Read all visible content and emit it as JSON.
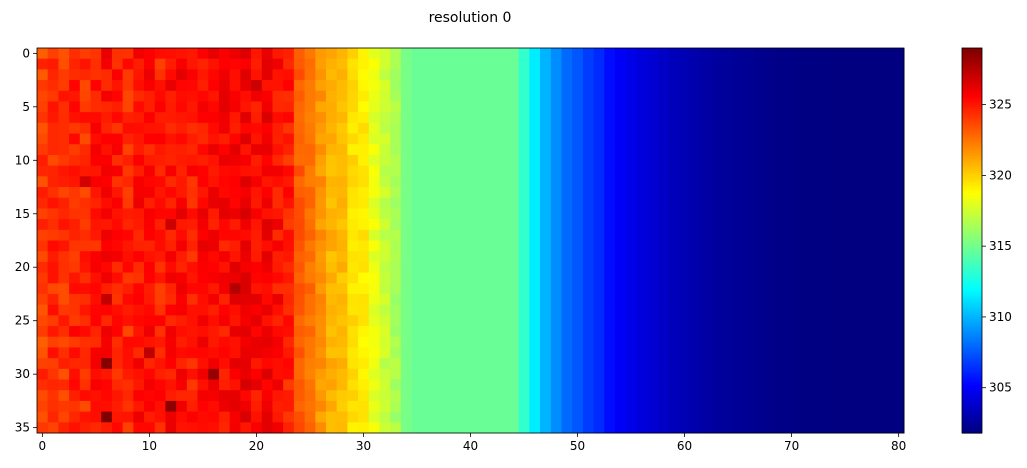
{
  "chart_data": {
    "type": "heatmap",
    "title": "resolution 0",
    "colormap": "jet",
    "rows": 36,
    "cols": 81,
    "x_ticks": [
      "0",
      "10",
      "20",
      "30",
      "40",
      "50",
      "60",
      "70",
      "80"
    ],
    "y_ticks": [
      "0",
      "5",
      "10",
      "15",
      "20",
      "25",
      "30",
      "35"
    ],
    "colorbar": {
      "vmin": 301.8,
      "vmax": 329.0,
      "ticks": [
        "305",
        "310",
        "315",
        "320",
        "325"
      ]
    },
    "column_profile": [
      324.0,
      324.5,
      324.3,
      324.8,
      324.5,
      325.0,
      325.3,
      325.0,
      324.6,
      325.2,
      325.2,
      324.8,
      325.3,
      325.5,
      325.0,
      325.4,
      325.4,
      325.4,
      325.6,
      325.8,
      325.5,
      325.8,
      325.3,
      324.8,
      323.2,
      322.6,
      321.6,
      320.8,
      320.6,
      319.6,
      319.3,
      318.2,
      317.3,
      316.5,
      315.2,
      314.8,
      314.8,
      314.8,
      314.8,
      314.8,
      314.8,
      314.8,
      314.8,
      314.8,
      314.8,
      313.3,
      311.5,
      310.0,
      309.0,
      308.0,
      307.5,
      306.8,
      306.3,
      305.5,
      305.0,
      304.6,
      304.3,
      304.0,
      303.7,
      303.4,
      303.2,
      303.0,
      302.8,
      302.6,
      302.5,
      302.4,
      302.3,
      302.2,
      302.1,
      302.0,
      302.0,
      301.9,
      301.9,
      301.9,
      301.8,
      301.8,
      301.8,
      301.8,
      301.8,
      301.8,
      301.8
    ],
    "hot_spots": [
      {
        "row": 29,
        "col": 6,
        "value": 328.8
      },
      {
        "row": 34,
        "col": 6,
        "value": 329.0
      },
      {
        "row": 33,
        "col": 12,
        "value": 328.6
      },
      {
        "row": 30,
        "col": 16,
        "value": 328.4
      },
      {
        "row": 22,
        "col": 18,
        "value": 327.6
      },
      {
        "row": 23,
        "col": 6,
        "value": 327.2
      },
      {
        "row": 28,
        "col": 10,
        "value": 327.3
      },
      {
        "row": 3,
        "col": 20,
        "value": 327.0
      },
      {
        "row": 12,
        "col": 4,
        "value": 326.8
      },
      {
        "row": 16,
        "col": 12,
        "value": 327.0
      }
    ]
  }
}
